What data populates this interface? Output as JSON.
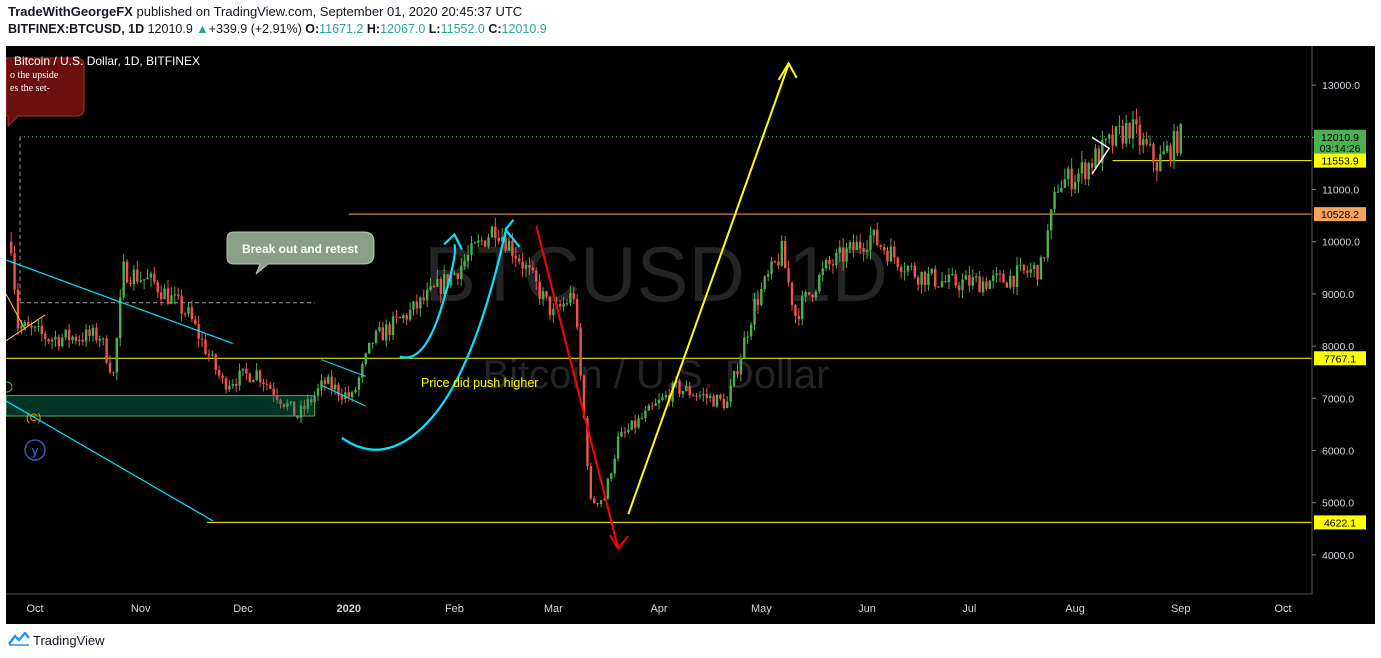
{
  "header": {
    "author": "TradeWithGeorgeFX",
    "published_text": "published on TradingView.com, September 01, 2020 20:45:37 UTC",
    "symbol": "BITFINEX:BTCUSD, 1D",
    "last": "12010.9",
    "change_arrow": "▲",
    "change": "+339.9 (+2.91%)",
    "o_label": "O:",
    "o_value": "11671.2",
    "h_label": "H:",
    "h_value": "12067.0",
    "l_label": "L:",
    "l_value": "11552.0",
    "c_label": "C:",
    "c_value": "12010.9"
  },
  "chart_title": "Bitcoin / U.S. Dollar, 1D, BITFINEX",
  "watermark": {
    "main": "BTCUSD, 1D",
    "sub": "Bitcoin / U.S. Dollar"
  },
  "annotations": {
    "callout_top_left_line1": "o the upside",
    "callout_top_left_line2": "es the set-",
    "bubble": "Break out and retest",
    "note_yellow": "Price did push higher",
    "wave_c": "(C)",
    "wave_y": "y"
  },
  "price_labels": [
    {
      "value": "12010.9",
      "bg": "#4caf50",
      "fg": "#000000"
    },
    {
      "value": "03:14:26",
      "bg": "#4caf50",
      "fg": "#000000"
    },
    {
      "value": "11553.9",
      "bg": "#ffff00",
      "fg": "#000000"
    },
    {
      "value": "10528.2",
      "bg": "#f7a35c",
      "fg": "#000000"
    },
    {
      "value": "7767.1",
      "bg": "#ffff00",
      "fg": "#000000"
    },
    {
      "value": "4622.1",
      "bg": "#ffff00",
      "fg": "#000000"
    }
  ],
  "footer": {
    "brand": "TradingView"
  },
  "colors": {
    "bg": "#000000",
    "up": "#4caf50",
    "down": "#ef5350",
    "cyan": "#00e5ff",
    "yellow": "#ffff00",
    "red": "#ff0000",
    "axis_text": "#d1d4dc"
  },
  "chart_data": {
    "type": "candlestick",
    "title": "Bitcoin / U.S. Dollar, 1D, BITFINEX",
    "x_axis": {
      "ticks": [
        "Oct",
        "Nov",
        "Dec",
        "2020",
        "Feb",
        "Mar",
        "Apr",
        "May",
        "Jun",
        "Jul",
        "Aug",
        "Sep",
        "Oct"
      ]
    },
    "y_axis": {
      "ticks": [
        13000,
        12000,
        11000,
        10000,
        9000,
        8000,
        7000,
        6000,
        5000,
        4000
      ],
      "ylim": [
        3250,
        13750
      ]
    },
    "price_path": [
      [
        "2019-09-24",
        10000
      ],
      [
        "2019-09-26",
        8400
      ],
      [
        "2019-10-05",
        8150
      ],
      [
        "2019-10-20",
        8200
      ],
      [
        "2019-10-24",
        7450
      ],
      [
        "2019-10-27",
        9450
      ],
      [
        "2019-11-05",
        9200
      ],
      [
        "2019-11-15",
        8600
      ],
      [
        "2019-11-25",
        7300
      ],
      [
        "2019-12-05",
        7500
      ],
      [
        "2019-12-17",
        6650
      ],
      [
        "2019-12-25",
        7300
      ],
      [
        "2020-01-02",
        7000
      ],
      [
        "2020-01-08",
        8100
      ],
      [
        "2020-01-20",
        8700
      ],
      [
        "2020-02-01",
        9400
      ],
      [
        "2020-02-13",
        10300
      ],
      [
        "2020-02-20",
        9700
      ],
      [
        "2020-03-01",
        8600
      ],
      [
        "2020-03-07",
        9000
      ],
      [
        "2020-03-12",
        5000
      ],
      [
        "2020-03-16",
        5100
      ],
      [
        "2020-03-20",
        6200
      ],
      [
        "2020-04-06",
        7200
      ],
      [
        "2020-04-21",
        6900
      ],
      [
        "2020-04-29",
        8800
      ],
      [
        "2020-05-07",
        9800
      ],
      [
        "2020-05-11",
        8600
      ],
      [
        "2020-05-20",
        9500
      ],
      [
        "2020-06-02",
        10100
      ],
      [
        "2020-06-15",
        9400
      ],
      [
        "2020-06-25",
        9200
      ],
      [
        "2020-07-10",
        9250
      ],
      [
        "2020-07-22",
        9500
      ],
      [
        "2020-07-27",
        11100
      ],
      [
        "2020-08-02",
        11300
      ],
      [
        "2020-08-10",
        11800
      ],
      [
        "2020-08-17",
        12200
      ],
      [
        "2020-08-25",
        11500
      ],
      [
        "2020-09-01",
        12010.9
      ]
    ],
    "horizontal_levels": [
      {
        "price": 11553.9,
        "color": "#ffff00"
      },
      {
        "price": 10528.2,
        "color": "#f7a35c"
      },
      {
        "price": 7767.1,
        "color": "#ffff00"
      },
      {
        "price": 4622.1,
        "color": "#ffff00"
      }
    ],
    "last_price": 12010.9
  }
}
